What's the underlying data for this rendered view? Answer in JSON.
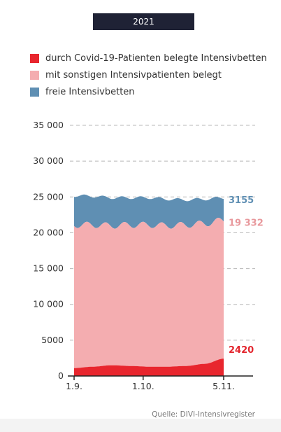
{
  "tab": {
    "label": "2021"
  },
  "legend": [
    {
      "label": "durch Covid-19-Patienten belegte Intensivbetten",
      "color": "#e8262e"
    },
    {
      "label": "mit sonstigen Intensivpatienten belegt",
      "color": "#f4adb0"
    },
    {
      "label": "freie Intensivbetten",
      "color": "#5f8fb3"
    }
  ],
  "source": "Quelle: DIVI-Intensivregister",
  "chart_data": {
    "type": "area",
    "stacked": true,
    "x_labels": [
      "1.9.",
      "1.10.",
      "5.11."
    ],
    "x_tick_index": [
      0,
      30,
      65
    ],
    "ylim": [
      0,
      35000
    ],
    "y_ticks": [
      0,
      5000,
      10000,
      15000,
      20000,
      25000,
      30000,
      35000
    ],
    "y_tick_labels": [
      "0",
      "5000",
      "10 000",
      "15 000",
      "20 000",
      "25 000",
      "30 000",
      "35 000"
    ],
    "grid": true,
    "legend_position": "top",
    "series": [
      {
        "name": "durch Covid-19-Patienten belegte Intensivbetten",
        "color": "#e8262e",
        "values": [
          1100,
          1300,
          1500,
          1400,
          1300,
          1300,
          1400,
          1700,
          2420
        ]
      },
      {
        "name": "mit sonstigen Intensivpatienten belegt",
        "color": "#f4adb0",
        "values": [
          20000,
          19800,
          19500,
          19700,
          19800,
          19700,
          19700,
          19600,
          19332
        ]
      },
      {
        "name": "freie Intensivbetten",
        "color": "#5f8fb3",
        "values": [
          4100,
          4000,
          3900,
          3800,
          3800,
          3700,
          3500,
          3400,
          3155
        ]
      }
    ],
    "end_labels": [
      "2420",
      "19 332",
      "3155"
    ]
  }
}
